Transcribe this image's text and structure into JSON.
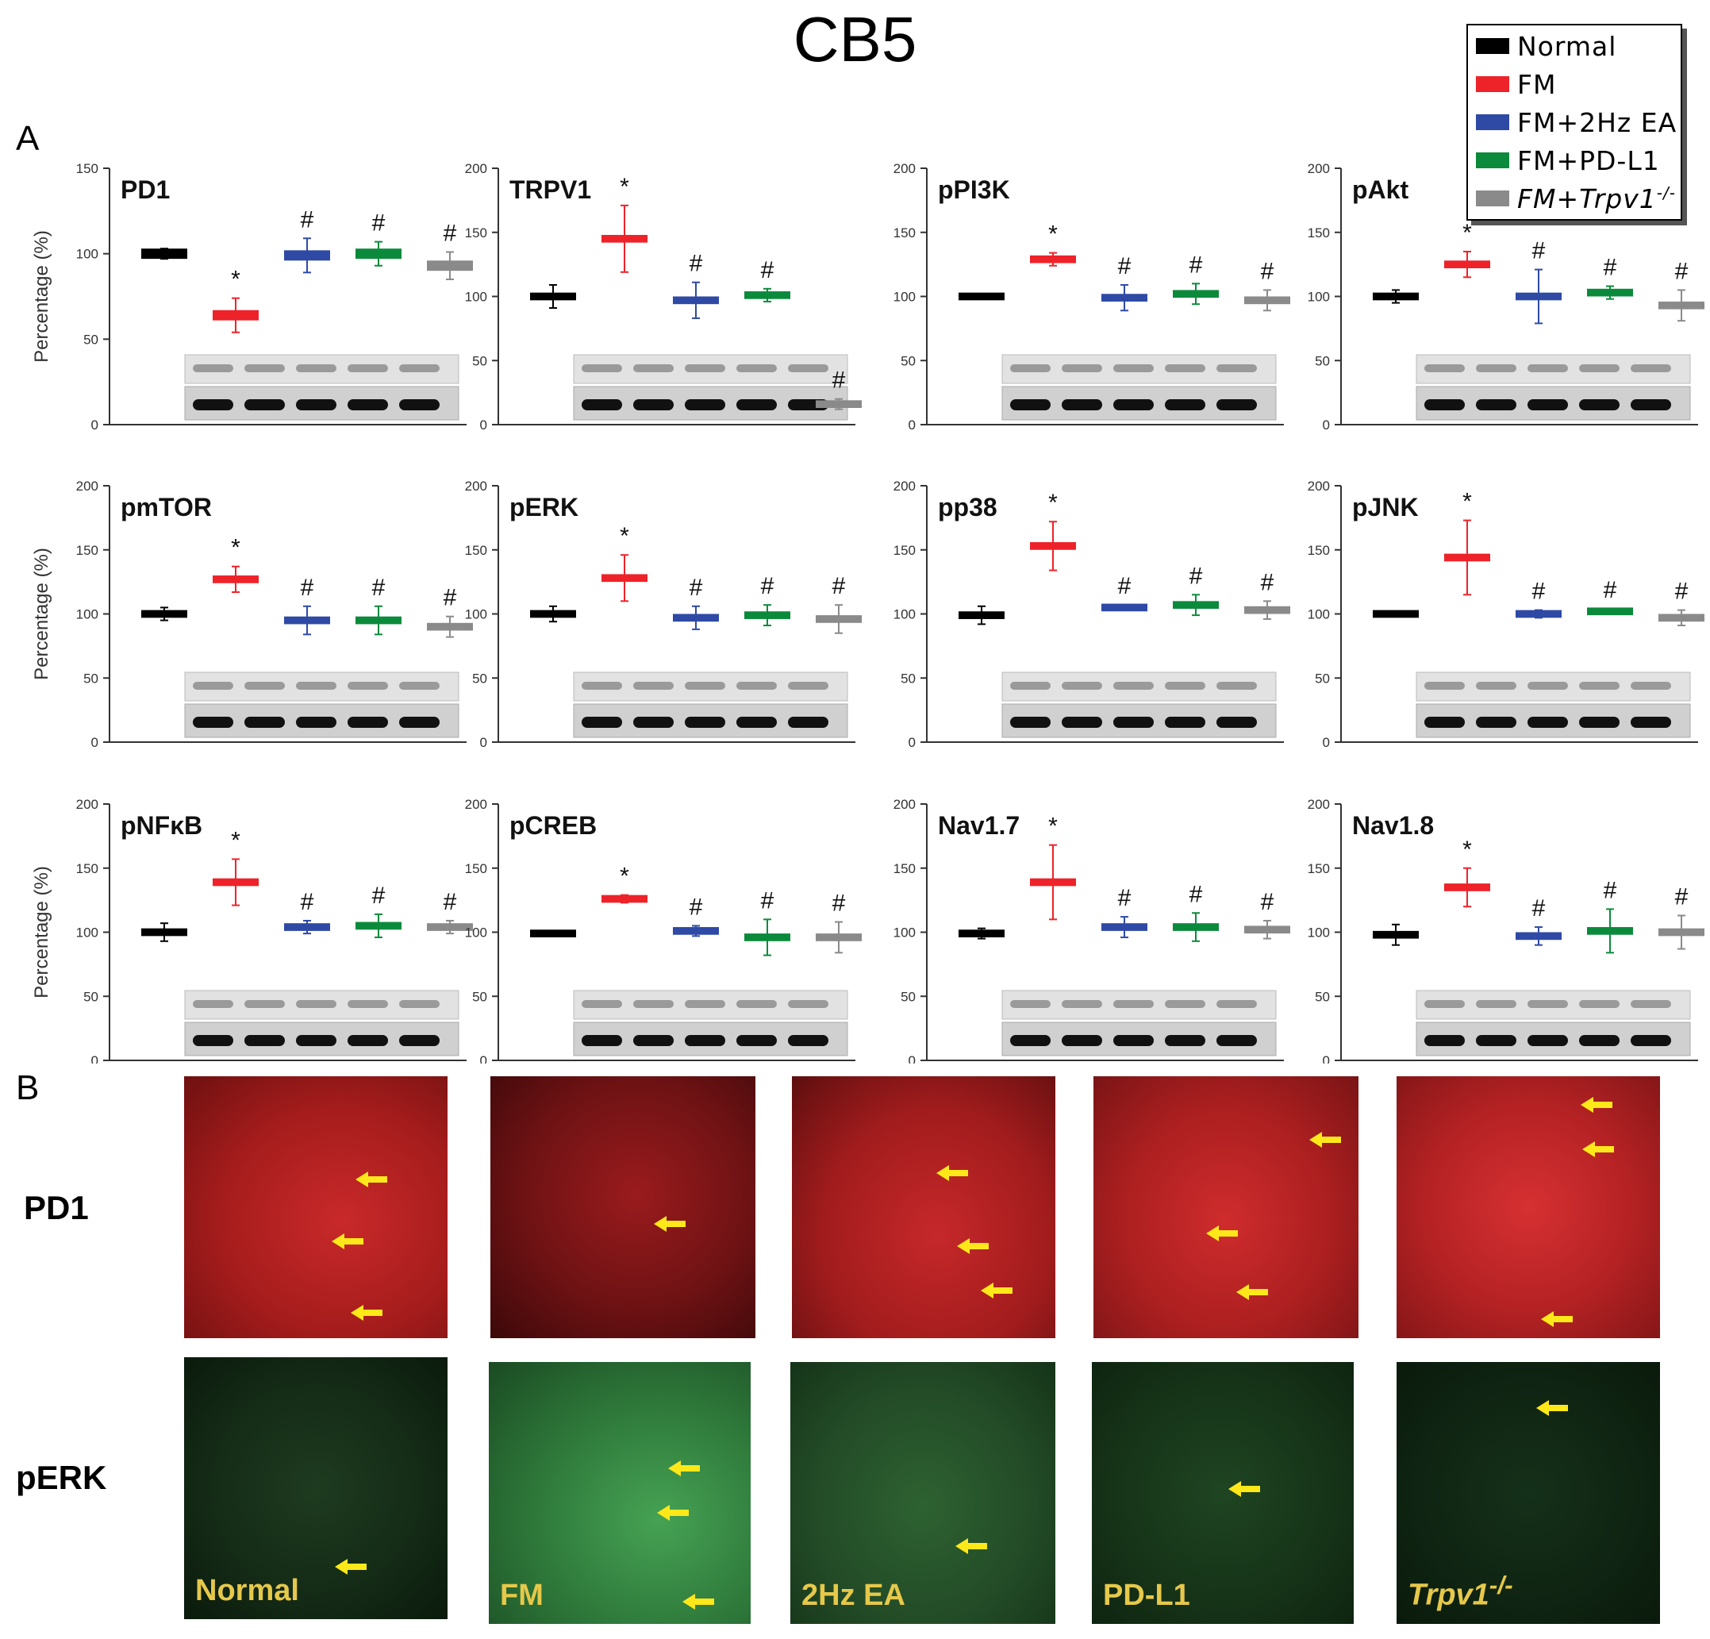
{
  "figure": {
    "title": "CB5",
    "panel_a_label": "A",
    "panel_b_label": "B",
    "legend": [
      {
        "label": "Normal",
        "color": "#000000"
      },
      {
        "label": "FM",
        "color": "#ee2229"
      },
      {
        "label": "FM+2Hz EA",
        "color": "#2e4aa5"
      },
      {
        "label": "FM+PD-L1",
        "color": "#0c8a3c"
      },
      {
        "label": "FM+Trpv1-/-",
        "color": "#8a8a8a"
      }
    ]
  },
  "chart_data": [
    {
      "type": "bar",
      "title": "PD1",
      "ylabel": "Percentage (%)",
      "ylim": [
        0,
        150
      ],
      "yticks": [
        0,
        50,
        100,
        150
      ],
      "categories": [
        "Normal",
        "FM",
        "FM+2Hz EA",
        "FM+PD-L1",
        "FM+Trpv1-/-"
      ],
      "values": [
        100,
        64,
        99,
        100,
        93
      ],
      "errors": [
        3,
        10,
        10,
        7,
        8
      ],
      "annotations": [
        "",
        "*",
        "#",
        "#",
        "#"
      ]
    },
    {
      "type": "bar",
      "title": "TRPV1",
      "ylabel": "",
      "ylim": [
        0,
        200
      ],
      "yticks": [
        0,
        50,
        100,
        150,
        200
      ],
      "categories": [
        "Normal",
        "FM",
        "FM+2Hz EA",
        "FM+PD-L1",
        "FM+Trpv1-/-"
      ],
      "values": [
        100,
        145,
        97,
        101,
        16
      ],
      "errors": [
        9,
        26,
        14,
        5,
        4
      ],
      "annotations": [
        "",
        "*",
        "#",
        "#",
        "#"
      ]
    },
    {
      "type": "bar",
      "title": "pPI3K",
      "ylabel": "",
      "ylim": [
        0,
        200
      ],
      "yticks": [
        0,
        50,
        100,
        150,
        200
      ],
      "categories": [
        "Normal",
        "FM",
        "FM+2Hz EA",
        "FM+PD-L1",
        "FM+Trpv1-/-"
      ],
      "values": [
        100,
        129,
        99,
        102,
        97
      ],
      "errors": [
        2,
        5,
        10,
        8,
        8
      ],
      "annotations": [
        "",
        "*",
        "#",
        "#",
        "#"
      ]
    },
    {
      "type": "bar",
      "title": "pAkt",
      "ylabel": "",
      "ylim": [
        0,
        200
      ],
      "yticks": [
        0,
        50,
        100,
        150,
        200
      ],
      "categories": [
        "Normal",
        "FM",
        "FM+2Hz EA",
        "FM+PD-L1",
        "FM+Trpv1-/-"
      ],
      "values": [
        100,
        125,
        100,
        103,
        93
      ],
      "errors": [
        5,
        10,
        21,
        5,
        12
      ],
      "annotations": [
        "",
        "*",
        "#",
        "#",
        "#"
      ]
    },
    {
      "type": "bar",
      "title": "pmTOR",
      "ylabel": "Percentage (%)",
      "ylim": [
        0,
        200
      ],
      "yticks": [
        0,
        50,
        100,
        150,
        200
      ],
      "categories": [
        "Normal",
        "FM",
        "FM+2Hz EA",
        "FM+PD-L1",
        "FM+Trpv1-/-"
      ],
      "values": [
        100,
        127,
        95,
        95,
        90
      ],
      "errors": [
        5,
        10,
        11,
        11,
        8
      ],
      "annotations": [
        "",
        "*",
        "#",
        "#",
        "#"
      ]
    },
    {
      "type": "bar",
      "title": "pERK",
      "ylabel": "",
      "ylim": [
        0,
        200
      ],
      "yticks": [
        0,
        50,
        100,
        150,
        200
      ],
      "categories": [
        "Normal",
        "FM",
        "FM+2Hz EA",
        "FM+PD-L1",
        "FM+Trpv1-/-"
      ],
      "values": [
        100,
        128,
        97,
        99,
        96
      ],
      "errors": [
        6,
        18,
        9,
        8,
        11
      ],
      "annotations": [
        "",
        "*",
        "#",
        "#",
        "#"
      ]
    },
    {
      "type": "bar",
      "title": "pp38",
      "ylabel": "",
      "ylim": [
        0,
        200
      ],
      "yticks": [
        0,
        50,
        100,
        150,
        200
      ],
      "categories": [
        "Normal",
        "FM",
        "FM+2Hz EA",
        "FM+PD-L1",
        "FM+Trpv1-/-"
      ],
      "values": [
        99,
        153,
        105,
        107,
        103
      ],
      "errors": [
        7,
        19,
        2,
        8,
        7
      ],
      "annotations": [
        "",
        "*",
        "#",
        "#",
        "#"
      ]
    },
    {
      "type": "bar",
      "title": "pJNK",
      "ylabel": "",
      "ylim": [
        0,
        200
      ],
      "yticks": [
        0,
        50,
        100,
        150,
        200
      ],
      "categories": [
        "Normal",
        "FM",
        "FM+2Hz EA",
        "FM+PD-L1",
        "FM+Trpv1-/-"
      ],
      "values": [
        100,
        144,
        100,
        102,
        97
      ],
      "errors": [
        1,
        29,
        3,
        2,
        6
      ],
      "annotations": [
        "",
        "*",
        "#",
        "#",
        "#"
      ]
    },
    {
      "type": "bar",
      "title": "pNFκB",
      "ylabel": "Percentage (%)",
      "ylim": [
        0,
        200
      ],
      "yticks": [
        0,
        50,
        100,
        150,
        200
      ],
      "categories": [
        "Normal",
        "FM",
        "FM+2Hz EA",
        "FM+PD-L1",
        "FM+Trpv1-/-"
      ],
      "values": [
        100,
        139,
        104,
        105,
        104
      ],
      "errors": [
        7,
        18,
        5,
        9,
        5
      ],
      "annotations": [
        "",
        "*",
        "#",
        "#",
        "#"
      ]
    },
    {
      "type": "bar",
      "title": "pCREB",
      "ylabel": "",
      "ylim": [
        0,
        200
      ],
      "yticks": [
        0,
        50,
        100,
        150,
        200
      ],
      "categories": [
        "Normal",
        "FM",
        "FM+2Hz EA",
        "FM+PD-L1",
        "FM+Trpv1-/-"
      ],
      "values": [
        99,
        126,
        101,
        96,
        96
      ],
      "errors": [
        2,
        3,
        4,
        14,
        12
      ],
      "annotations": [
        "",
        "*",
        "#",
        "#",
        "#"
      ]
    },
    {
      "type": "bar",
      "title": "Nav1.7",
      "ylabel": "",
      "ylim": [
        0,
        200
      ],
      "yticks": [
        0,
        50,
        100,
        150,
        200
      ],
      "categories": [
        "Normal",
        "FM",
        "FM+2Hz EA",
        "FM+PD-L1",
        "FM+Trpv1-/-"
      ],
      "values": [
        99,
        139,
        104,
        104,
        102
      ],
      "errors": [
        4,
        29,
        8,
        11,
        7
      ],
      "annotations": [
        "",
        "*",
        "#",
        "#",
        "#"
      ]
    },
    {
      "type": "bar",
      "title": "Nav1.8",
      "ylabel": "",
      "ylim": [
        0,
        200
      ],
      "yticks": [
        0,
        50,
        100,
        150,
        200
      ],
      "categories": [
        "Normal",
        "FM",
        "FM+2Hz EA",
        "FM+PD-L1",
        "FM+Trpv1-/-"
      ],
      "values": [
        98,
        135,
        97,
        101,
        100
      ],
      "errors": [
        8,
        15,
        7,
        17,
        13
      ],
      "annotations": [
        "",
        "*",
        "#",
        "#",
        "#"
      ]
    }
  ],
  "panel_b": {
    "rows": [
      "PD1",
      "pERK"
    ],
    "columns": [
      "Normal",
      "FM",
      "2Hz EA",
      "PD-L1",
      "Trpv1-/-"
    ],
    "colors": {
      "pd1": "#b01818",
      "perk": "#1e5a26"
    }
  }
}
